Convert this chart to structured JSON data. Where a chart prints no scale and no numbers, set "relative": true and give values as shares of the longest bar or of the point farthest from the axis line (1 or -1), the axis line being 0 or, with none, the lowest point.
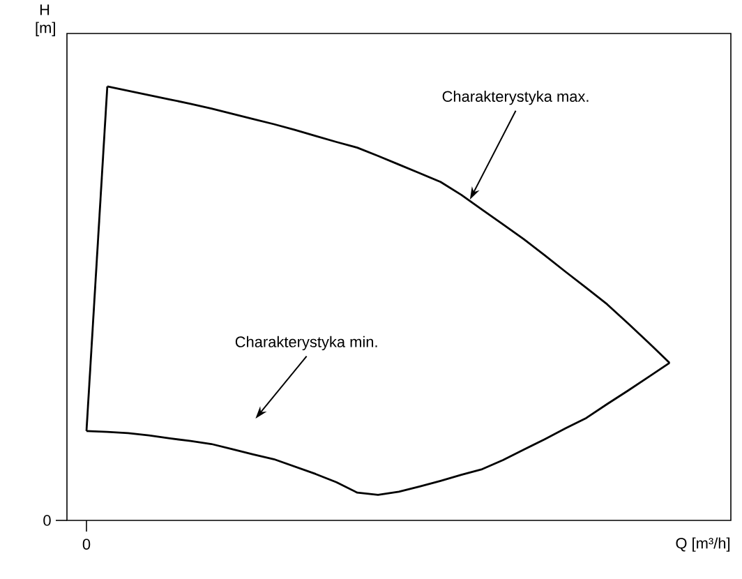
{
  "chart_data": {
    "type": "line",
    "relative": true,
    "xlabel": "Q [m³/h]",
    "ylabel": "H [m]",
    "line_style": "solid",
    "categories": [
      null,
      null,
      null,
      null,
      null,
      null,
      null,
      null,
      null,
      null,
      null,
      null,
      null,
      null,
      null,
      null,
      null,
      null,
      null,
      null,
      null,
      null,
      null,
      null,
      null,
      null,
      null,
      null,
      null
    ],
    "series": [
      {
        "color": "#000000",
        "values": [
          null,
          1.0,
          0.99,
          0.98,
          0.97,
          0.96,
          0.949,
          0.937,
          0.925,
          0.913,
          0.9,
          0.886,
          0.872,
          0.859,
          0.84,
          0.82,
          0.8,
          0.78,
          0.75,
          0.716,
          0.682,
          0.648,
          0.611,
          0.573,
          0.536,
          0.498,
          0.454,
          0.409,
          0.363
        ]
      },
      {
        "color": "#000000",
        "values": [
          0.206,
          1.0,
          null,
          null,
          null,
          null,
          null,
          null,
          null,
          null,
          null,
          null,
          null,
          null,
          null,
          null,
          null,
          null,
          null,
          null,
          null,
          null,
          null,
          null,
          null,
          null,
          null,
          null,
          null
        ]
      },
      {
        "color": "#000000",
        "values": [
          0.206,
          0.204,
          0.201,
          0.196,
          0.189,
          0.183,
          0.176,
          0.164,
          0.152,
          0.141,
          0.124,
          0.107,
          0.088,
          0.064,
          0.059,
          0.066,
          0.078,
          0.091,
          0.105,
          0.118,
          0.139,
          0.163,
          0.187,
          0.212,
          0.236,
          0.268,
          0.299,
          0.331,
          0.363
        ]
      }
    ],
    "annotations": [
      "Charakterystyka max.",
      "Charakterystyka min.",
      "0",
      "0"
    ]
  }
}
